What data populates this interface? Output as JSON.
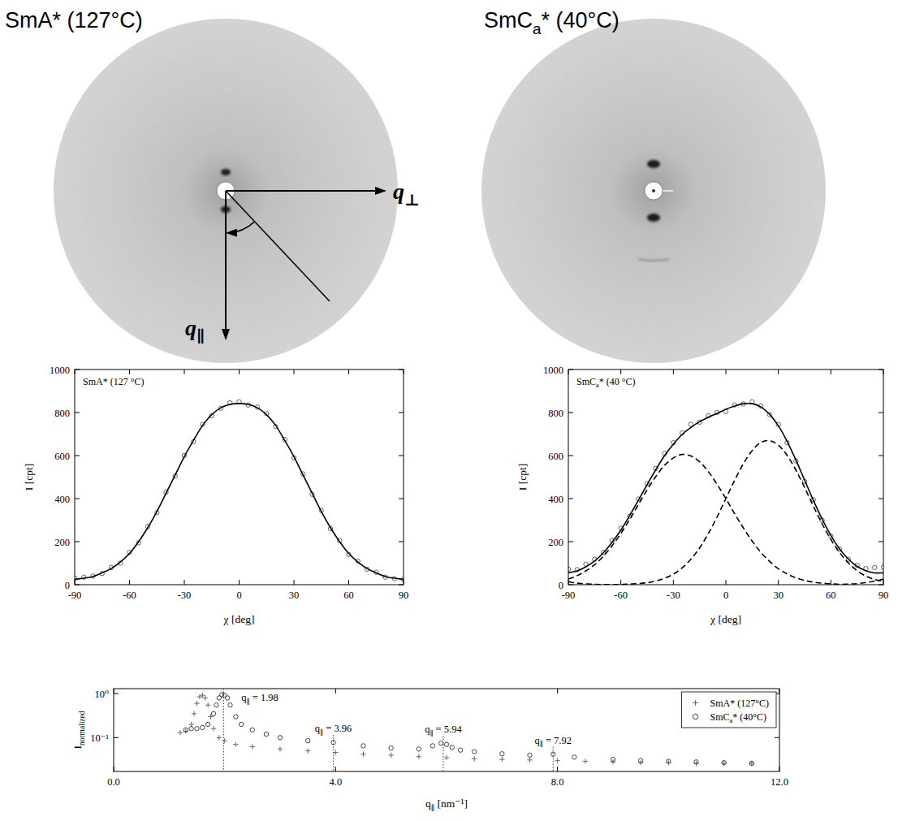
{
  "images": [
    {
      "title": "SmA* (127°C)",
      "axis_labels": [
        "q⊥",
        "q∥"
      ]
    },
    {
      "title": "SmCa* (40°C)"
    }
  ],
  "chart_data": [
    {
      "type": "scatter",
      "annotations": [
        {
          "text": "SmA* (127 °C)"
        }
      ],
      "xlabel": "χ [deg]",
      "ylabel": "I [cpt]",
      "xlim": [
        -90,
        90
      ],
      "xticks": [
        -90,
        -60,
        -30,
        0,
        30,
        60,
        90
      ],
      "ylim": [
        0,
        1000
      ],
      "yticks": [
        0,
        200,
        400,
        600,
        800,
        1000
      ],
      "x": [
        -90,
        -85,
        -80,
        -75,
        -70,
        -65,
        -60,
        -55,
        -50,
        -45,
        -40,
        -35,
        -30,
        -25,
        -20,
        -15,
        -10,
        -5,
        0,
        5,
        10,
        15,
        20,
        25,
        30,
        35,
        40,
        45,
        50,
        55,
        60,
        65,
        70,
        75,
        80,
        85,
        90
      ],
      "series": [
        {
          "type": "scatter",
          "marker": "circle",
          "color": "#555555",
          "values": [
            30,
            35,
            40,
            52,
            80,
            100,
            150,
            195,
            270,
            335,
            430,
            505,
            600,
            665,
            745,
            785,
            820,
            845,
            850,
            835,
            825,
            795,
            735,
            675,
            590,
            515,
            420,
            345,
            260,
            205,
            140,
            110,
            72,
            58,
            35,
            28,
            25
          ]
        },
        {
          "type": "line",
          "line_style": "solid",
          "color": "#000000",
          "values": [
            25,
            30,
            38,
            55,
            75,
            105,
            145,
            200,
            265,
            340,
            425,
            510,
            595,
            670,
            740,
            790,
            822,
            838,
            842,
            838,
            822,
            790,
            740,
            670,
            595,
            510,
            425,
            340,
            265,
            200,
            145,
            105,
            75,
            55,
            38,
            30,
            25
          ]
        }
      ]
    },
    {
      "type": "scatter",
      "annotations": [
        {
          "text": "SmCa* (40 °C)"
        }
      ],
      "xlabel": "χ [deg]",
      "ylabel": "I [cpt]",
      "xlim": [
        -90,
        90
      ],
      "xticks": [
        -90,
        -60,
        -30,
        0,
        30,
        60,
        90
      ],
      "ylim": [
        0,
        1000
      ],
      "yticks": [
        0,
        200,
        400,
        600,
        800,
        1000
      ],
      "x": [
        -90,
        -85,
        -80,
        -75,
        -70,
        -65,
        -60,
        -55,
        -50,
        -45,
        -40,
        -35,
        -30,
        -25,
        -20,
        -15,
        -10,
        -5,
        0,
        5,
        10,
        15,
        20,
        25,
        30,
        35,
        40,
        45,
        50,
        55,
        60,
        65,
        70,
        75,
        80,
        85,
        90
      ],
      "series": [
        {
          "type": "scatter",
          "marker": "circle",
          "color": "#555555",
          "values": [
            72,
            70,
            95,
            118,
            150,
            205,
            262,
            318,
            398,
            470,
            540,
            610,
            660,
            705,
            745,
            755,
            785,
            800,
            805,
            835,
            840,
            850,
            830,
            790,
            745,
            660,
            575,
            480,
            395,
            300,
            225,
            165,
            118,
            90,
            75,
            80,
            82
          ]
        },
        {
          "type": "line",
          "line_style": "solid",
          "color": "#000000",
          "values": [
            55,
            64,
            83,
            110,
            148,
            197,
            254,
            321,
            392,
            465,
            535,
            600,
            653,
            698,
            731,
            757,
            778,
            796,
            815,
            830,
            841,
            841,
            826,
            792,
            738,
            666,
            580,
            486,
            392,
            305,
            229,
            166,
            119,
            85,
            65,
            55,
            55
          ]
        },
        {
          "type": "line",
          "line_style": "dashed",
          "color": "#000000",
          "values": [
            26,
            42,
            64,
            93,
            132,
            181,
            238,
            303,
            372,
            441,
            503,
            555,
            589,
            605,
            598,
            571,
            525,
            466,
            400,
            330,
            264,
            203,
            150,
            108,
            74,
            50,
            32,
            20,
            12,
            7,
            4,
            2,
            3,
            5,
            10,
            16,
            26
          ]
        },
        {
          "type": "line",
          "line_style": "dashed",
          "color": "#000000",
          "values": [
            14,
            7,
            4,
            2,
            1,
            1,
            1,
            3,
            5,
            9,
            17,
            30,
            49,
            78,
            118,
            171,
            238,
            315,
            400,
            485,
            562,
            623,
            661,
            669,
            649,
            601,
            533,
            451,
            365,
            283,
            210,
            149,
            101,
            65,
            40,
            24,
            14
          ]
        }
      ]
    },
    {
      "type": "scatter",
      "log": "y",
      "legend": "upper right",
      "xlabel": "q∥ [nm⁻¹]",
      "ylabel": "Inormalized",
      "xlim": [
        0,
        12
      ],
      "xticks": [
        {
          "value": 0,
          "label": "0.0"
        },
        {
          "value": 4,
          "label": "4.0"
        },
        {
          "value": 8,
          "label": "8.0"
        },
        {
          "value": 12,
          "label": "12.0"
        }
      ],
      "ylim": [
        0.017,
        1.3
      ],
      "yticks": [
        {
          "value": 0.1,
          "label": "10⁻¹"
        },
        {
          "value": 1,
          "label": "10⁰"
        }
      ],
      "annotations": [
        {
          "x": 1.98,
          "text": "q∥ = 1.98"
        },
        {
          "x": 3.96,
          "text": "q∥ = 3.96"
        },
        {
          "x": 5.94,
          "text": "q∥ = 5.94"
        },
        {
          "x": 7.92,
          "text": "q∥ = 7.92"
        }
      ],
      "series": [
        {
          "name": "SmA* (127°C)",
          "marker": "plus",
          "color": "#666666",
          "x": [
            1.2,
            1.3,
            1.4,
            1.45,
            1.5,
            1.55,
            1.6,
            1.65,
            1.7,
            1.75,
            1.8,
            1.9,
            2.0,
            2.2,
            2.5,
            3.0,
            3.5,
            4.0,
            4.5,
            5.0,
            5.5,
            6.0,
            6.5,
            7.0,
            7.5,
            8.0,
            8.5,
            9.0,
            9.5,
            10.0,
            10.5,
            11.0,
            11.5
          ],
          "values": [
            0.13,
            0.14,
            0.2,
            0.35,
            0.6,
            0.85,
            0.92,
            0.8,
            0.55,
            0.3,
            0.16,
            0.1,
            0.085,
            0.07,
            0.062,
            0.055,
            0.05,
            0.046,
            0.042,
            0.04,
            0.037,
            0.035,
            0.033,
            0.032,
            0.031,
            0.03,
            0.029,
            0.028,
            0.027,
            0.027,
            0.026,
            0.026,
            0.026
          ]
        },
        {
          "name": "SmCa* (40°C)",
          "marker": "circle",
          "color": "#333333",
          "x": [
            1.3,
            1.4,
            1.5,
            1.6,
            1.7,
            1.8,
            1.85,
            1.9,
            1.95,
            2.0,
            2.05,
            2.1,
            2.2,
            2.3,
            2.5,
            2.75,
            3.0,
            3.5,
            3.96,
            4.5,
            5.0,
            5.5,
            5.75,
            5.9,
            6.0,
            6.1,
            6.25,
            6.5,
            7.0,
            7.5,
            7.92,
            8.3,
            9.0,
            9.5,
            10.0,
            10.5,
            11.0,
            11.5
          ],
          "values": [
            0.15,
            0.16,
            0.16,
            0.17,
            0.2,
            0.35,
            0.55,
            0.8,
            0.95,
            0.92,
            0.8,
            0.55,
            0.3,
            0.2,
            0.15,
            0.12,
            0.1,
            0.085,
            0.078,
            0.065,
            0.058,
            0.055,
            0.065,
            0.075,
            0.07,
            0.06,
            0.052,
            0.048,
            0.043,
            0.04,
            0.042,
            0.036,
            0.032,
            0.03,
            0.029,
            0.028,
            0.027,
            0.026
          ]
        }
      ]
    }
  ]
}
